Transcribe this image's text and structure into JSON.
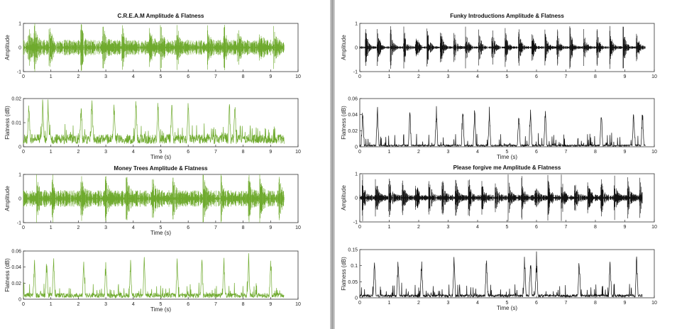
{
  "figures": [
    {
      "color": "#6faa2e",
      "plots": [
        {
          "kind": "amplitude",
          "title": "C.R.E.A.M Amplitude & Flatness",
          "ylabel": "Amplitude",
          "xlabel": "",
          "ylim": [
            -1,
            1
          ],
          "yticks": [
            "-1",
            "0",
            "1"
          ],
          "xticks": [
            "0",
            "1",
            "2",
            "3",
            "4",
            "5",
            "6",
            "7",
            "8",
            "9",
            "10"
          ],
          "xlim": [
            0,
            10
          ],
          "duration": 9.5,
          "seed": 11,
          "base": 0.32,
          "peaks": [
            0.18,
            0.4,
            0.95,
            2.1,
            2.9,
            3.6,
            4.6,
            5.0,
            5.6,
            6.7,
            7.3,
            7.8,
            8.6,
            9.1
          ]
        },
        {
          "kind": "flatness",
          "title": "",
          "ylabel": "Flatness (dB)",
          "xlabel": "Time (s)",
          "ylim": [
            0,
            0.02
          ],
          "yticks": [
            "0",
            "0.01",
            "0.02"
          ],
          "xticks": [
            "0",
            "1",
            "2",
            "3",
            "4",
            "5",
            "6",
            "7",
            "8",
            "9",
            "10"
          ],
          "xlim": [
            0,
            10
          ],
          "duration": 9.5,
          "seed": 23,
          "base": 0.004,
          "spikes": [
            0.2,
            0.7,
            0.9,
            2.1,
            2.5,
            3.3,
            4.1,
            4.9,
            5.4,
            6.0,
            7.5,
            7.7
          ]
        },
        {
          "kind": "amplitude",
          "title": "Money Trees Amplitude & Flatness",
          "ylabel": "Amplitude",
          "xlabel": "Time (s)",
          "ylim": [
            -1,
            1
          ],
          "yticks": [
            "-1",
            "0",
            "1"
          ],
          "xticks": [
            "0",
            "1",
            "2",
            "3",
            "4",
            "5",
            "6",
            "7",
            "8",
            "9",
            "10"
          ],
          "xlim": [
            0,
            10
          ],
          "duration": 9.5,
          "seed": 37,
          "base": 0.34,
          "peaks": [
            0.5,
            1.05,
            2.1,
            3.0,
            3.75,
            4.7,
            5.45,
            6.55,
            7.2,
            8.2,
            8.6,
            9.3
          ]
        },
        {
          "kind": "flatness",
          "title": "",
          "ylabel": "Flatness (dB)",
          "xlabel": "Time (s)",
          "ylim": [
            0,
            0.06
          ],
          "yticks": [
            "0",
            "0.02",
            "0.04",
            "0.06"
          ],
          "xticks": [
            "0",
            "1",
            "2",
            "3",
            "4",
            "5",
            "6",
            "7",
            "8",
            "9",
            "10"
          ],
          "xlim": [
            0,
            10
          ],
          "duration": 9.5,
          "seed": 41,
          "base": 0.006,
          "spikes": [
            0.4,
            0.85,
            1.1,
            2.2,
            3.0,
            3.9,
            4.4,
            5.6,
            6.5,
            7.3,
            8.2,
            9.0
          ]
        }
      ]
    },
    {
      "color": "#111111",
      "plots": [
        {
          "kind": "amplitude",
          "title": "Funky Introductions Amplitude & Flatness",
          "ylabel": "Amplitude",
          "xlabel": "",
          "ylim": [
            -1,
            1
          ],
          "yticks": [
            "-1",
            "0",
            "1"
          ],
          "xticks": [
            "0",
            "1",
            "2",
            "3",
            "4",
            "5",
            "6",
            "7",
            "8",
            "9",
            "10"
          ],
          "xlim": [
            0,
            10
          ],
          "duration": 9.7,
          "seed": 53,
          "base": 0.05,
          "peaks": [
            0.2,
            0.6,
            1.05,
            1.5,
            1.9,
            2.3,
            2.75,
            3.2,
            3.6,
            4.05,
            4.5,
            4.95,
            5.4,
            5.85,
            6.3,
            6.7,
            7.15,
            7.6,
            8.05,
            8.5,
            8.95,
            9.4
          ]
        },
        {
          "kind": "flatness",
          "title": "",
          "ylabel": "Flatness (dB)",
          "xlabel": "Time (s)",
          "ylim": [
            0,
            0.06
          ],
          "yticks": [
            "0",
            "0.02",
            "0.04",
            "0.06"
          ],
          "xticks": [
            "0",
            "1",
            "2",
            "3",
            "4",
            "5",
            "6",
            "7",
            "8",
            "9",
            "10"
          ],
          "xlim": [
            0,
            10
          ],
          "duration": 9.7,
          "seed": 67,
          "base": 0.002,
          "spikes": [
            0.1,
            0.6,
            1.7,
            2.6,
            3.5,
            3.9,
            4.4,
            5.4,
            5.8,
            6.3,
            8.2,
            9.3,
            9.6
          ]
        },
        {
          "kind": "amplitude",
          "title": "Please forgive me Amplitude & Flatness",
          "ylabel": "Amplitude",
          "xlabel": "",
          "ylim": [
            -1,
            1
          ],
          "yticks": [
            "-1",
            "0",
            "1"
          ],
          "xticks": [
            "0",
            "1",
            "2",
            "3",
            "4",
            "5",
            "6",
            "7",
            "8",
            "9",
            "10"
          ],
          "xlim": [
            0,
            10
          ],
          "duration": 9.6,
          "seed": 71,
          "base": 0.12,
          "peaks": [
            0.1,
            0.55,
            1.0,
            1.45,
            1.9,
            2.35,
            2.8,
            3.25,
            3.7,
            4.15,
            4.6,
            5.05,
            5.5,
            5.95,
            6.4,
            6.85,
            7.3,
            7.75,
            8.2,
            8.65,
            9.1,
            9.5
          ]
        },
        {
          "kind": "flatness",
          "title": "",
          "ylabel": "Flatness (dB)",
          "xlabel": "Time (s)",
          "ylim": [
            0,
            0.15
          ],
          "yticks": [
            "0",
            "0.05",
            "0.1",
            "0.15"
          ],
          "xticks": [
            "0",
            "1",
            "2",
            "3",
            "4",
            "5",
            "6",
            "7",
            "8",
            "9",
            "10"
          ],
          "xlim": [
            0,
            10
          ],
          "duration": 9.6,
          "seed": 83,
          "base": 0.008,
          "spikes": [
            0.5,
            1.3,
            2.1,
            3.2,
            4.3,
            5.6,
            5.8,
            6.0,
            7.45,
            8.5,
            9.4
          ]
        }
      ]
    }
  ]
}
